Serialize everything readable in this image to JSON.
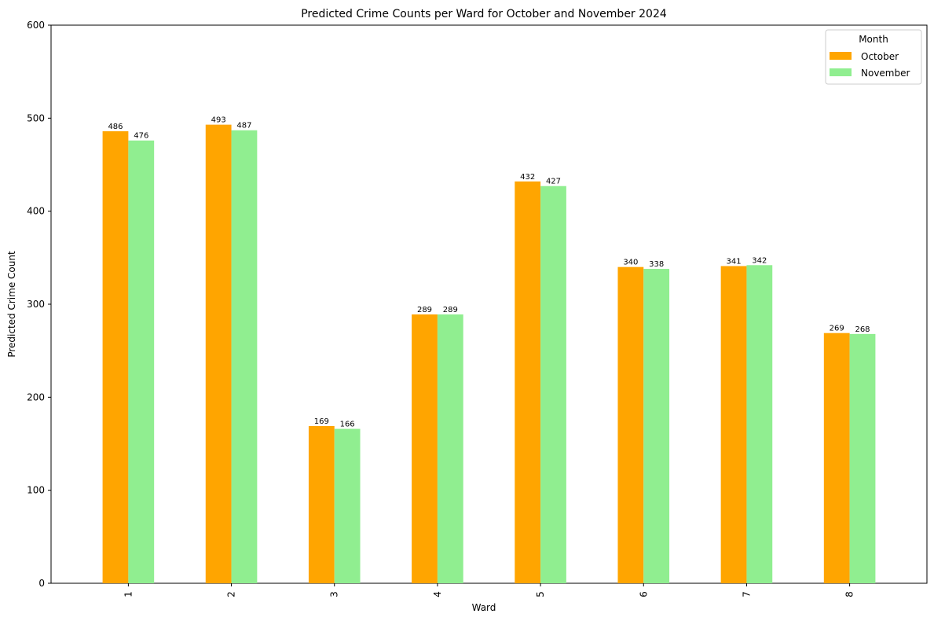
{
  "chart_data": {
    "type": "bar",
    "title": "Predicted Crime Counts per Ward for October and November 2024",
    "xlabel": "Ward",
    "ylabel": "Predicted Crime Count",
    "categories": [
      "1",
      "2",
      "3",
      "4",
      "5",
      "6",
      "7",
      "8"
    ],
    "series": [
      {
        "name": "October",
        "color": "#FFA500",
        "values": [
          486,
          493,
          169,
          289,
          432,
          340,
          341,
          269
        ]
      },
      {
        "name": "November",
        "color": "#90EE90",
        "values": [
          476,
          487,
          166,
          289,
          427,
          338,
          342,
          268
        ]
      }
    ],
    "ylim": [
      0,
      600
    ],
    "yticks": [
      0,
      100,
      200,
      300,
      400,
      500,
      600
    ],
    "grid": false,
    "legend": {
      "title": "Month",
      "placement": "top-right"
    },
    "show_data_labels": true
  }
}
